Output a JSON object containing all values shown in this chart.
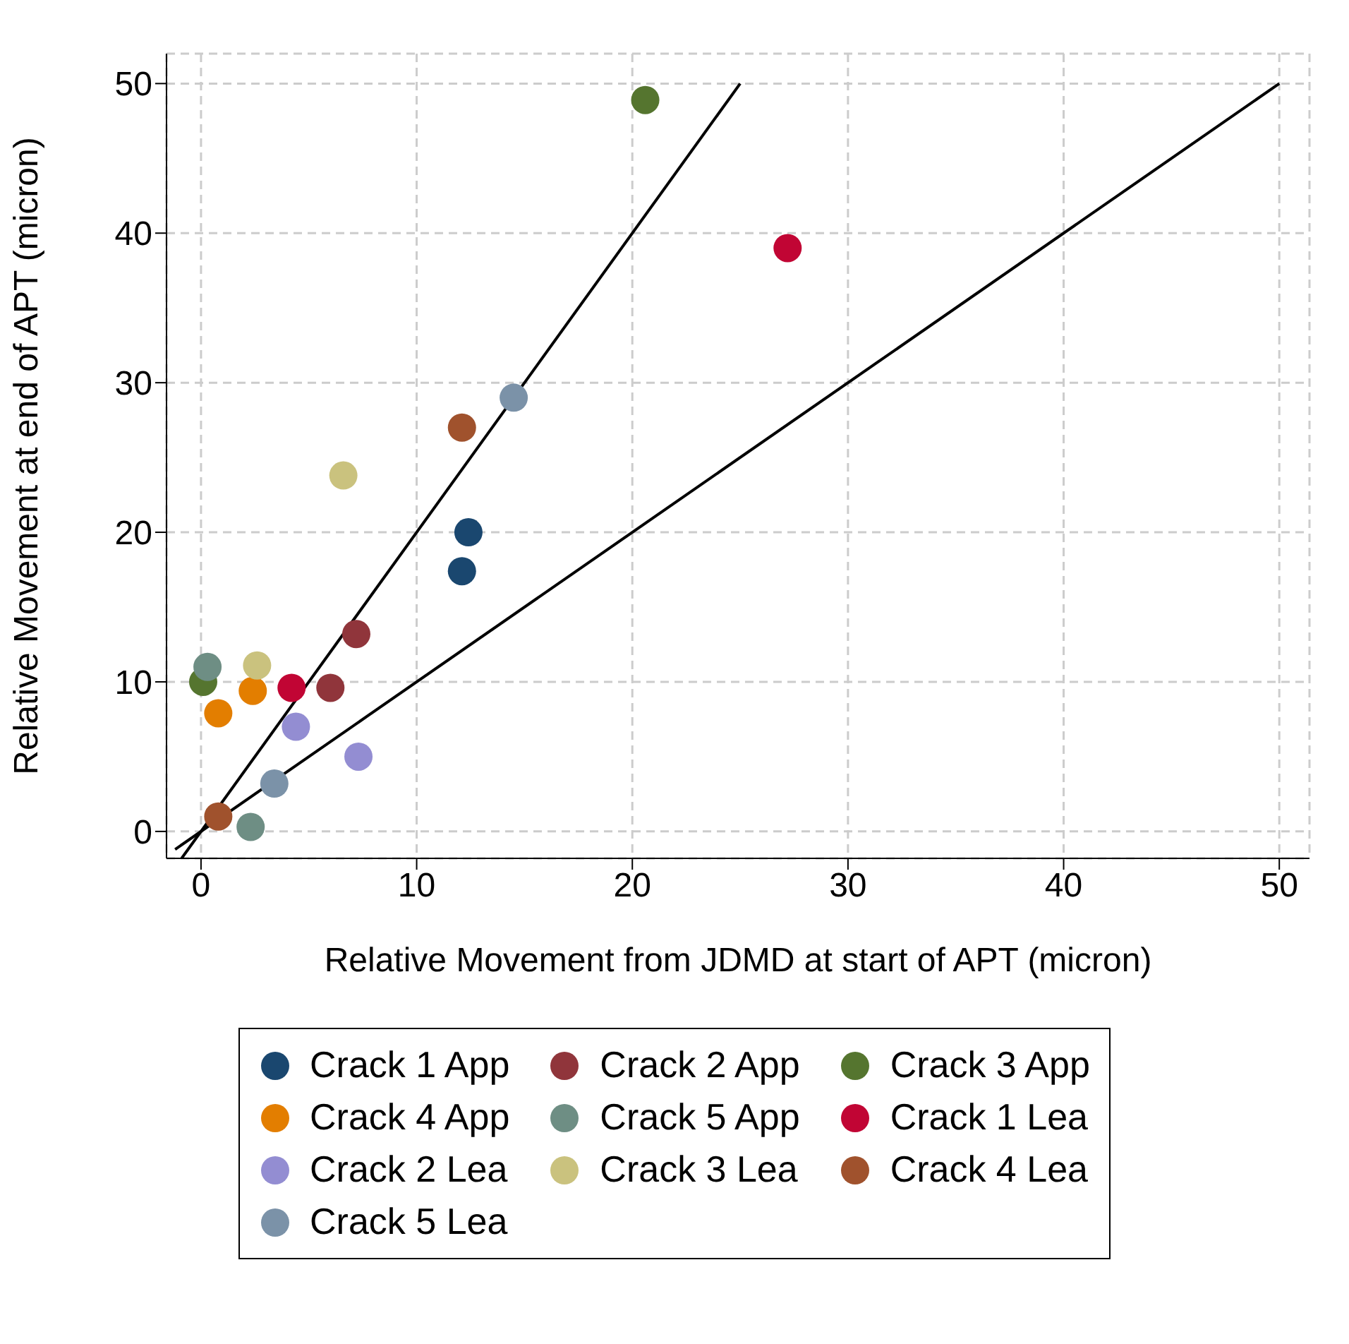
{
  "chart_data": {
    "type": "scatter",
    "xlabel": "Relative Movement from JDMD at start of APT (micron)",
    "ylabel": "Relative Movement at end of APT (micron)",
    "xlim": [
      -1.6,
      51.4
    ],
    "ylim": [
      -1.8,
      52
    ],
    "xticks": [
      0,
      10,
      20,
      30,
      40,
      50
    ],
    "yticks": [
      0,
      10,
      20,
      30,
      40,
      50
    ],
    "grid": true,
    "legend": "bottom",
    "marker": "circle",
    "series": [
      {
        "name": "Crack 1 App",
        "color": "#1a476f",
        "x": [
          12.4,
          12.1
        ],
        "values": [
          20.0,
          17.4
        ]
      },
      {
        "name": "Crack 2 App",
        "color": "#90353b",
        "x": [
          7.2,
          6.0
        ],
        "values": [
          13.2,
          9.6
        ]
      },
      {
        "name": "Crack 3 App",
        "color": "#55752f",
        "x": [
          20.6,
          0.1
        ],
        "values": [
          48.9,
          10.0
        ]
      },
      {
        "name": "Crack 4 App",
        "color": "#e37e00",
        "x": [
          2.4,
          0.8
        ],
        "values": [
          9.4,
          7.9
        ]
      },
      {
        "name": "Crack 5 App",
        "color": "#6e8e84",
        "x": [
          0.3,
          2.3
        ],
        "values": [
          11.0,
          0.3
        ]
      },
      {
        "name": "Crack 1 Lea",
        "color": "#c10534",
        "x": [
          27.2,
          4.2
        ],
        "values": [
          39.0,
          9.6
        ]
      },
      {
        "name": "Crack 2 Lea",
        "color": "#938dd2",
        "x": [
          4.4,
          7.3
        ],
        "values": [
          7.0,
          5.0
        ]
      },
      {
        "name": "Crack 3 Lea",
        "color": "#cac27e",
        "x": [
          6.6,
          2.6
        ],
        "values": [
          23.8,
          11.1
        ]
      },
      {
        "name": "Crack 4 Lea",
        "color": "#a0522d",
        "x": [
          12.1,
          0.8
        ],
        "values": [
          27.0,
          1.0
        ]
      },
      {
        "name": "Crack 5 Lea",
        "color": "#7b92a8",
        "x": [
          14.5,
          3.4
        ],
        "values": [
          29.0,
          3.2
        ]
      },
      {
        "type": "line",
        "color": "#000000",
        "marker": "none",
        "x": [
          -0.9,
          25
        ],
        "values": [
          -1.8,
          50
        ]
      },
      {
        "type": "line",
        "color": "#000000",
        "marker": "none",
        "x": [
          -1.2,
          50
        ],
        "values": [
          -1.2,
          50
        ]
      }
    ]
  }
}
